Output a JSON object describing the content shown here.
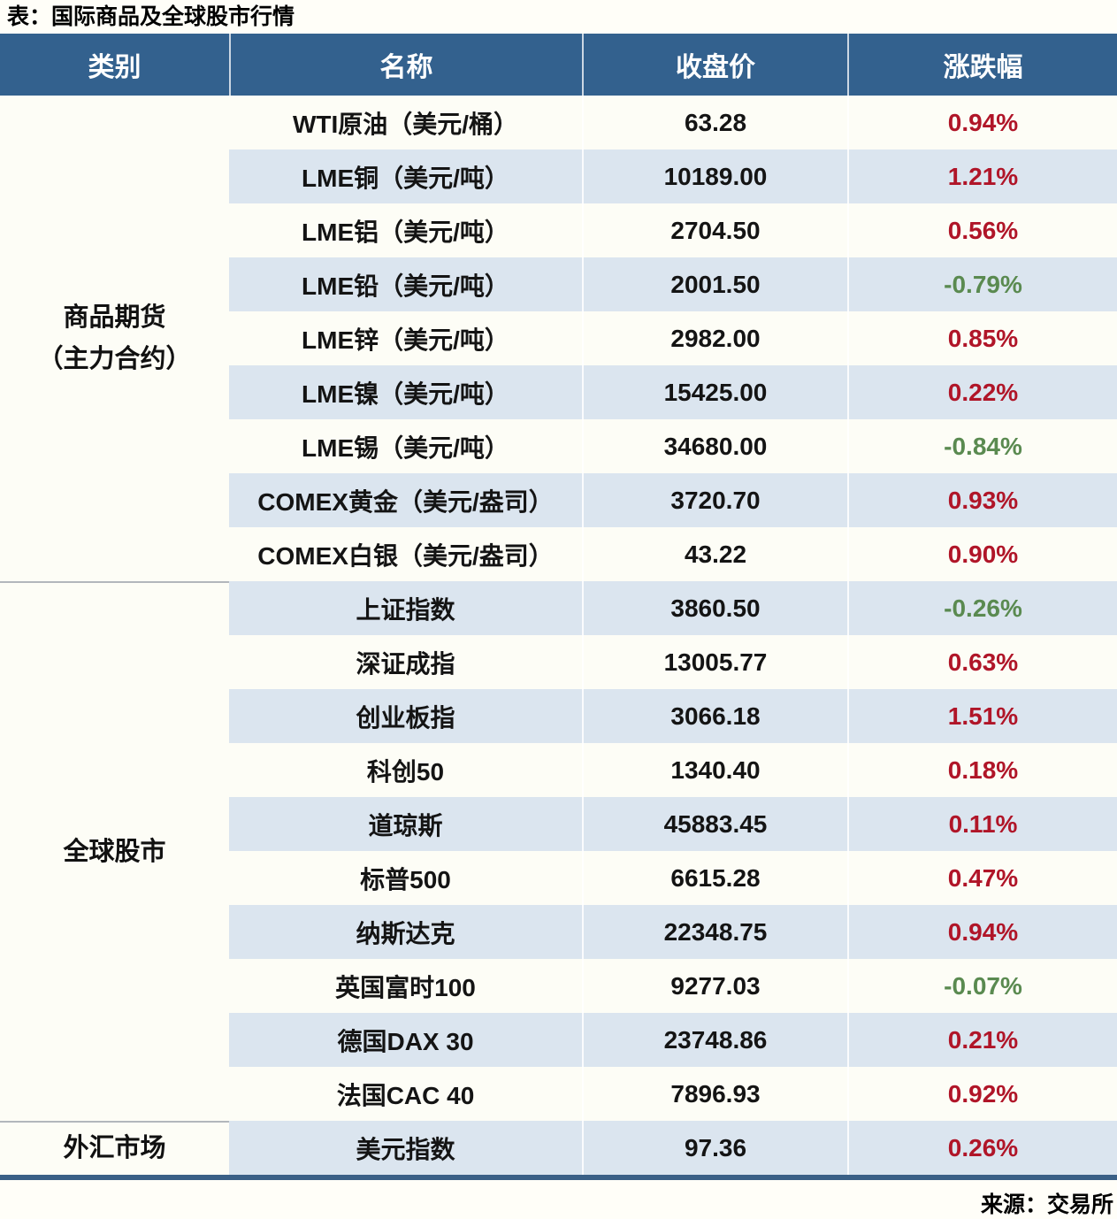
{
  "title": "表：国际商品及全球股市行情",
  "source": "来源：交易所",
  "colors": {
    "header_bg": "#33618e",
    "row_bg": "#fdfdf6",
    "row_alt_bg": "#dbe5ef",
    "up_red": "#b01528",
    "down_green": "#5a8a50",
    "bottom_border": "#3a6086"
  },
  "table": {
    "headers": [
      "类别",
      "名称",
      "收盘价",
      "涨跌幅"
    ],
    "sections": [
      {
        "category_lines": [
          "商品期货",
          "（主力合约）"
        ],
        "rows": [
          {
            "name": "WTI原油（美元/桶）",
            "close": "63.28",
            "change": "0.94%",
            "direction": "up"
          },
          {
            "name": "LME铜（美元/吨）",
            "close": "10189.00",
            "change": "1.21%",
            "direction": "up"
          },
          {
            "name": "LME铝（美元/吨）",
            "close": "2704.50",
            "change": "0.56%",
            "direction": "up"
          },
          {
            "name": "LME铅（美元/吨）",
            "close": "2001.50",
            "change": "-0.79%",
            "direction": "down"
          },
          {
            "name": "LME锌（美元/吨）",
            "close": "2982.00",
            "change": "0.85%",
            "direction": "up"
          },
          {
            "name": "LME镍（美元/吨）",
            "close": "15425.00",
            "change": "0.22%",
            "direction": "up"
          },
          {
            "name": "LME锡（美元/吨）",
            "close": "34680.00",
            "change": "-0.84%",
            "direction": "down"
          },
          {
            "name": "COMEX黄金（美元/盎司）",
            "close": "3720.70",
            "change": "0.93%",
            "direction": "up"
          },
          {
            "name": "COMEX白银（美元/盎司）",
            "close": "43.22",
            "change": "0.90%",
            "direction": "up"
          }
        ]
      },
      {
        "category_lines": [
          "全球股市"
        ],
        "rows": [
          {
            "name": "上证指数",
            "close": "3860.50",
            "change": "-0.26%",
            "direction": "down"
          },
          {
            "name": "深证成指",
            "close": "13005.77",
            "change": "0.63%",
            "direction": "up"
          },
          {
            "name": "创业板指",
            "close": "3066.18",
            "change": "1.51%",
            "direction": "up"
          },
          {
            "name": "科创50",
            "close": "1340.40",
            "change": "0.18%",
            "direction": "up"
          },
          {
            "name": "道琼斯",
            "close": "45883.45",
            "change": "0.11%",
            "direction": "up"
          },
          {
            "name": "标普500",
            "close": "6615.28",
            "change": "0.47%",
            "direction": "up"
          },
          {
            "name": "纳斯达克",
            "close": "22348.75",
            "change": "0.94%",
            "direction": "up"
          },
          {
            "name": "英国富时100",
            "close": "9277.03",
            "change": "-0.07%",
            "direction": "down"
          },
          {
            "name": "德国DAX 30",
            "close": "23748.86",
            "change": "0.21%",
            "direction": "up"
          },
          {
            "name": "法国CAC 40",
            "close": "7896.93",
            "change": "0.92%",
            "direction": "up"
          }
        ]
      },
      {
        "category_lines": [
          "外汇市场"
        ],
        "rows": [
          {
            "name": "美元指数",
            "close": "97.36",
            "change": "0.26%",
            "direction": "up"
          }
        ]
      }
    ]
  },
  "chart_data": {
    "type": "table",
    "title": "表：国际商品及全球股市行情",
    "columns": [
      "类别",
      "名称",
      "收盘价",
      "涨跌幅"
    ],
    "rows": [
      [
        "商品期货（主力合约）",
        "WTI原油（美元/桶）",
        63.28,
        "0.94%"
      ],
      [
        "商品期货（主力合约）",
        "LME铜（美元/吨）",
        10189.0,
        "1.21%"
      ],
      [
        "商品期货（主力合约）",
        "LME铝（美元/吨）",
        2704.5,
        "0.56%"
      ],
      [
        "商品期货（主力合约）",
        "LME铅（美元/吨）",
        2001.5,
        "-0.79%"
      ],
      [
        "商品期货（主力合约）",
        "LME锌（美元/吨）",
        2982.0,
        "0.85%"
      ],
      [
        "商品期货（主力合约）",
        "LME镍（美元/吨）",
        15425.0,
        "0.22%"
      ],
      [
        "商品期货（主力合约）",
        "LME锡（美元/吨）",
        34680.0,
        "-0.84%"
      ],
      [
        "商品期货（主力合约）",
        "COMEX黄金（美元/盎司）",
        3720.7,
        "0.93%"
      ],
      [
        "商品期货（主力合约）",
        "COMEX白银（美元/盎司）",
        43.22,
        "0.90%"
      ],
      [
        "全球股市",
        "上证指数",
        3860.5,
        "-0.26%"
      ],
      [
        "全球股市",
        "深证成指",
        13005.77,
        "0.63%"
      ],
      [
        "全球股市",
        "创业板指",
        3066.18,
        "1.51%"
      ],
      [
        "全球股市",
        "科创50",
        1340.4,
        "0.18%"
      ],
      [
        "全球股市",
        "道琼斯",
        45883.45,
        "0.11%"
      ],
      [
        "全球股市",
        "标普500",
        6615.28,
        "0.47%"
      ],
      [
        "全球股市",
        "纳斯达克",
        22348.75,
        "0.94%"
      ],
      [
        "全球股市",
        "英国富时100",
        9277.03,
        "-0.07%"
      ],
      [
        "全球股市",
        "德国DAX 30",
        23748.86,
        "0.21%"
      ],
      [
        "全球股市",
        "法国CAC 40",
        7896.93,
        "0.92%"
      ],
      [
        "外汇市场",
        "美元指数",
        97.36,
        "0.26%"
      ]
    ],
    "source": "来源：交易所",
    "color_coding": {
      "red": "positive change (up)",
      "green": "negative change (down)"
    }
  }
}
